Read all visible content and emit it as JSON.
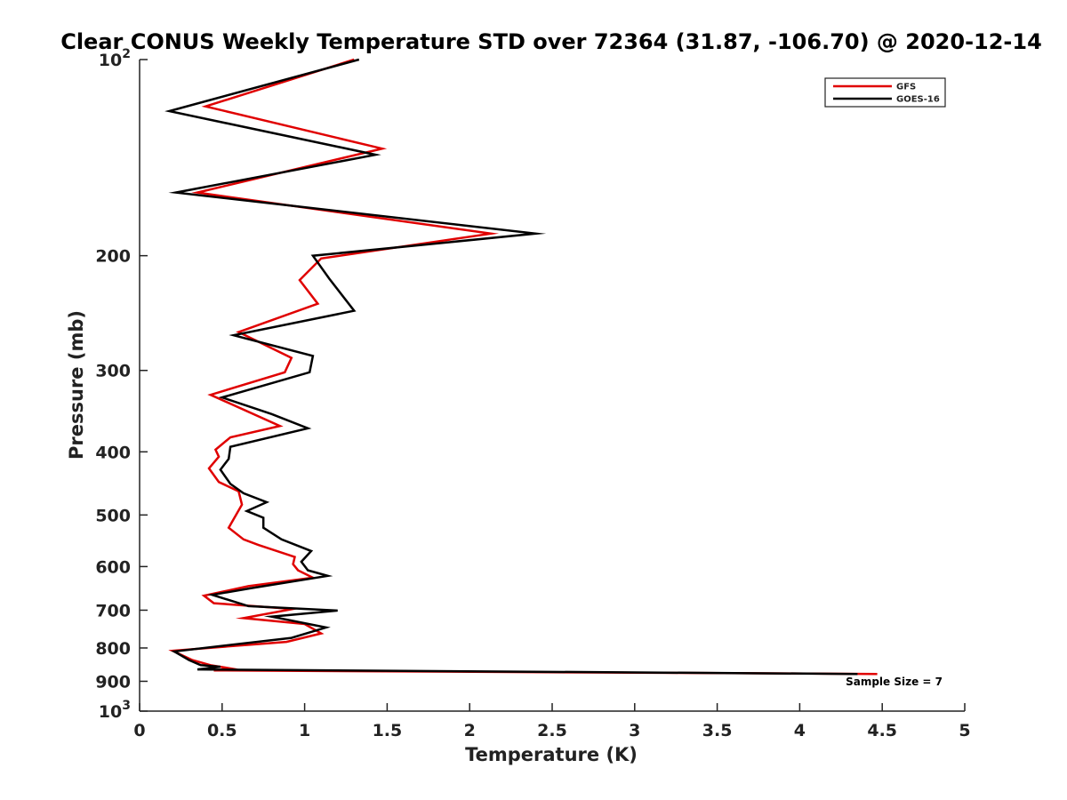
{
  "chart_data": {
    "type": "line",
    "title": "Clear CONUS Weekly Temperature STD over 72364 (31.87, -106.70) @ 2020-12-14",
    "xlabel": "Temperature (K)",
    "ylabel": "Pressure (mb)",
    "xlim": [
      0,
      5
    ],
    "ylim": [
      100,
      1000
    ],
    "y_scale": "log",
    "y_reversed": true,
    "grid": false,
    "legend_position": "top-right",
    "x_ticks": [
      {
        "value": 0,
        "label": "0"
      },
      {
        "value": 0.5,
        "label": "0.5"
      },
      {
        "value": 1,
        "label": "1"
      },
      {
        "value": 1.5,
        "label": "1.5"
      },
      {
        "value": 2,
        "label": "2"
      },
      {
        "value": 2.5,
        "label": "2.5"
      },
      {
        "value": 3,
        "label": "3"
      },
      {
        "value": 3.5,
        "label": "3.5"
      },
      {
        "value": 4,
        "label": "4"
      },
      {
        "value": 4.5,
        "label": "4.5"
      },
      {
        "value": 5,
        "label": "5"
      }
    ],
    "y_ticks": [
      {
        "value": 100,
        "base": "10",
        "exp": "2"
      },
      {
        "value": 200,
        "base": "200",
        "exp": ""
      },
      {
        "value": 300,
        "base": "300",
        "exp": ""
      },
      {
        "value": 400,
        "base": "400",
        "exp": ""
      },
      {
        "value": 500,
        "base": "500",
        "exp": ""
      },
      {
        "value": 600,
        "base": "600",
        "exp": ""
      },
      {
        "value": 700,
        "base": "700",
        "exp": ""
      },
      {
        "value": 800,
        "base": "800",
        "exp": ""
      },
      {
        "value": 900,
        "base": "900",
        "exp": ""
      },
      {
        "value": 1000,
        "base": "10",
        "exp": "3"
      }
    ],
    "annotation": "Sample Size = 7",
    "series": [
      {
        "name": "GFS",
        "color": "#e00000",
        "points": [
          [
            1.3,
            100
          ],
          [
            0.4,
            118
          ],
          [
            1.47,
            137
          ],
          [
            0.35,
            160
          ],
          [
            2.13,
            185
          ],
          [
            1.1,
            202
          ],
          [
            0.97,
            218
          ],
          [
            1.08,
            237
          ],
          [
            0.6,
            262
          ],
          [
            0.92,
            287
          ],
          [
            0.88,
            302
          ],
          [
            0.43,
            327
          ],
          [
            0.85,
            365
          ],
          [
            0.55,
            380
          ],
          [
            0.46,
            397
          ],
          [
            0.48,
            407
          ],
          [
            0.42,
            424
          ],
          [
            0.48,
            445
          ],
          [
            0.6,
            460
          ],
          [
            0.62,
            482
          ],
          [
            0.54,
            523
          ],
          [
            0.63,
            545
          ],
          [
            0.72,
            556
          ],
          [
            0.94,
            580
          ],
          [
            0.93,
            595
          ],
          [
            0.96,
            608
          ],
          [
            1.05,
            624
          ],
          [
            0.66,
            643
          ],
          [
            0.39,
            665
          ],
          [
            0.45,
            683
          ],
          [
            0.93,
            697
          ],
          [
            0.63,
            720
          ],
          [
            1.0,
            735
          ],
          [
            1.1,
            760
          ],
          [
            0.89,
            783
          ],
          [
            0.2,
            808
          ],
          [
            0.32,
            835
          ],
          [
            0.43,
            850
          ],
          [
            0.55,
            860
          ],
          [
            0.45,
            866
          ],
          [
            4.47,
            877
          ]
        ]
      },
      {
        "name": "GOES-16",
        "color": "#000000",
        "points": [
          [
            1.33,
            100
          ],
          [
            0.18,
            120
          ],
          [
            1.43,
            140
          ],
          [
            0.22,
            160
          ],
          [
            2.4,
            185
          ],
          [
            1.05,
            200
          ],
          [
            1.15,
            217
          ],
          [
            1.3,
            243
          ],
          [
            0.57,
            265
          ],
          [
            1.05,
            285
          ],
          [
            1.03,
            302
          ],
          [
            0.5,
            330
          ],
          [
            0.8,
            350
          ],
          [
            1.02,
            368
          ],
          [
            0.55,
            393
          ],
          [
            0.54,
            410
          ],
          [
            0.49,
            426
          ],
          [
            0.55,
            448
          ],
          [
            0.63,
            463
          ],
          [
            0.77,
            478
          ],
          [
            0.65,
            493
          ],
          [
            0.75,
            505
          ],
          [
            0.75,
            523
          ],
          [
            0.86,
            545
          ],
          [
            1.04,
            568
          ],
          [
            0.98,
            590
          ],
          [
            1.02,
            608
          ],
          [
            1.14,
            620
          ],
          [
            0.67,
            648
          ],
          [
            0.44,
            663
          ],
          [
            0.66,
            690
          ],
          [
            1.2,
            701
          ],
          [
            0.8,
            716
          ],
          [
            1.13,
            744
          ],
          [
            0.92,
            772
          ],
          [
            0.21,
            810
          ],
          [
            0.3,
            835
          ],
          [
            0.37,
            850
          ],
          [
            0.49,
            855
          ],
          [
            0.35,
            863
          ],
          [
            4.35,
            877
          ]
        ]
      }
    ]
  }
}
